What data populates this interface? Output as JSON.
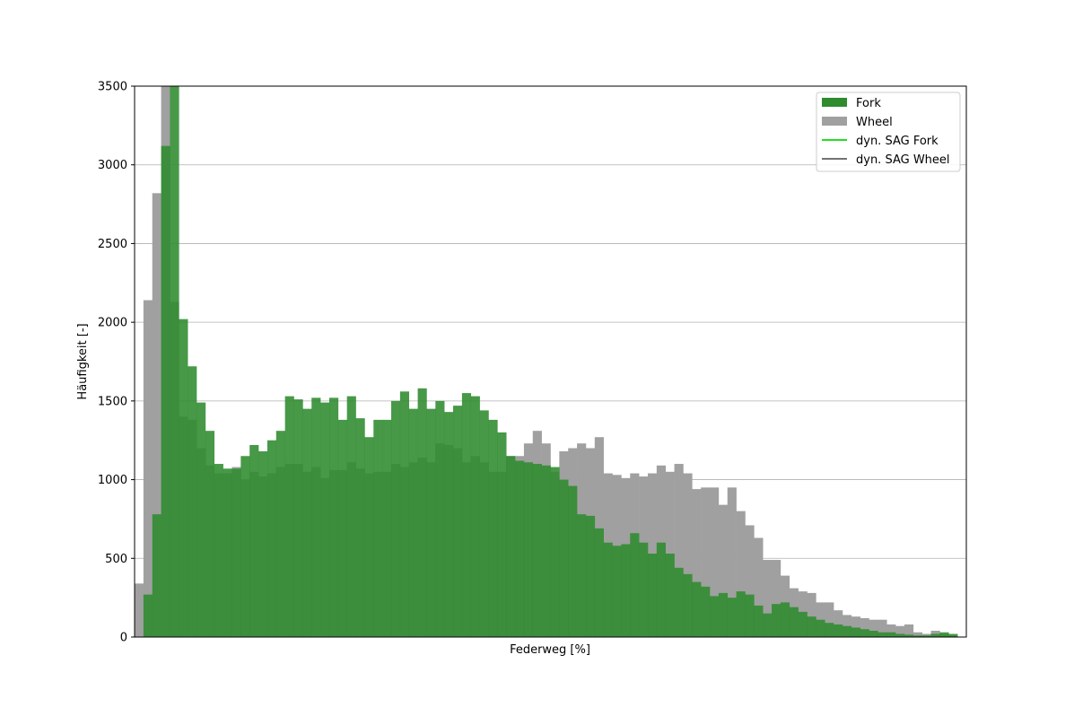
{
  "chart_data": {
    "type": "bar",
    "xlabel": "Federweg [%]",
    "ylabel": "Häufigkeit [-]",
    "ylim": [
      0,
      3500
    ],
    "yticks": [
      0,
      500,
      1000,
      1500,
      2000,
      2500,
      3000,
      3500
    ],
    "grid": "horizontal",
    "legend_position": "top-right",
    "series": [
      {
        "name": "Fork",
        "color": "#2e8b2e",
        "values": [
          0,
          270,
          780,
          3120,
          3500,
          2020,
          1720,
          1490,
          1310,
          1100,
          1070,
          1070,
          1150,
          1220,
          1180,
          1250,
          1310,
          1530,
          1510,
          1450,
          1520,
          1490,
          1520,
          1380,
          1530,
          1390,
          1270,
          1380,
          1380,
          1500,
          1560,
          1450,
          1580,
          1450,
          1500,
          1430,
          1470,
          1550,
          1530,
          1440,
          1380,
          1300,
          1150,
          1120,
          1110,
          1100,
          1090,
          1080,
          1000,
          960,
          780,
          770,
          690,
          600,
          580,
          590,
          660,
          600,
          530,
          600,
          530,
          440,
          400,
          350,
          320,
          260,
          280,
          250,
          290,
          270,
          200,
          150,
          210,
          220,
          190,
          160,
          130,
          110,
          90,
          80,
          70,
          60,
          50,
          40,
          30,
          30,
          20,
          15,
          10,
          10,
          20,
          30,
          20,
          0
        ]
      },
      {
        "name": "Wheel",
        "color": "#a0a0a0",
        "values": [
          340,
          2140,
          2820,
          3500,
          2130,
          1400,
          1380,
          1200,
          1090,
          1040,
          1040,
          1080,
          1000,
          1050,
          1020,
          1040,
          1080,
          1100,
          1100,
          1050,
          1080,
          1010,
          1060,
          1060,
          1110,
          1070,
          1040,
          1050,
          1050,
          1100,
          1080,
          1110,
          1140,
          1110,
          1230,
          1220,
          1200,
          1110,
          1150,
          1110,
          1050,
          1050,
          1150,
          1150,
          1230,
          1310,
          1230,
          1050,
          1180,
          1200,
          1230,
          1200,
          1270,
          1040,
          1030,
          1010,
          1040,
          1020,
          1040,
          1090,
          1050,
          1100,
          1040,
          940,
          950,
          950,
          840,
          950,
          800,
          710,
          630,
          490,
          490,
          390,
          310,
          290,
          280,
          220,
          220,
          170,
          140,
          130,
          120,
          110,
          110,
          80,
          70,
          80,
          30,
          20,
          40,
          20,
          10,
          0
        ]
      },
      {
        "name": "dyn. SAG Fork",
        "color": "#22dd22",
        "values": []
      },
      {
        "name": "dyn. SAG Wheel",
        "color": "#444444",
        "values": []
      }
    ]
  }
}
